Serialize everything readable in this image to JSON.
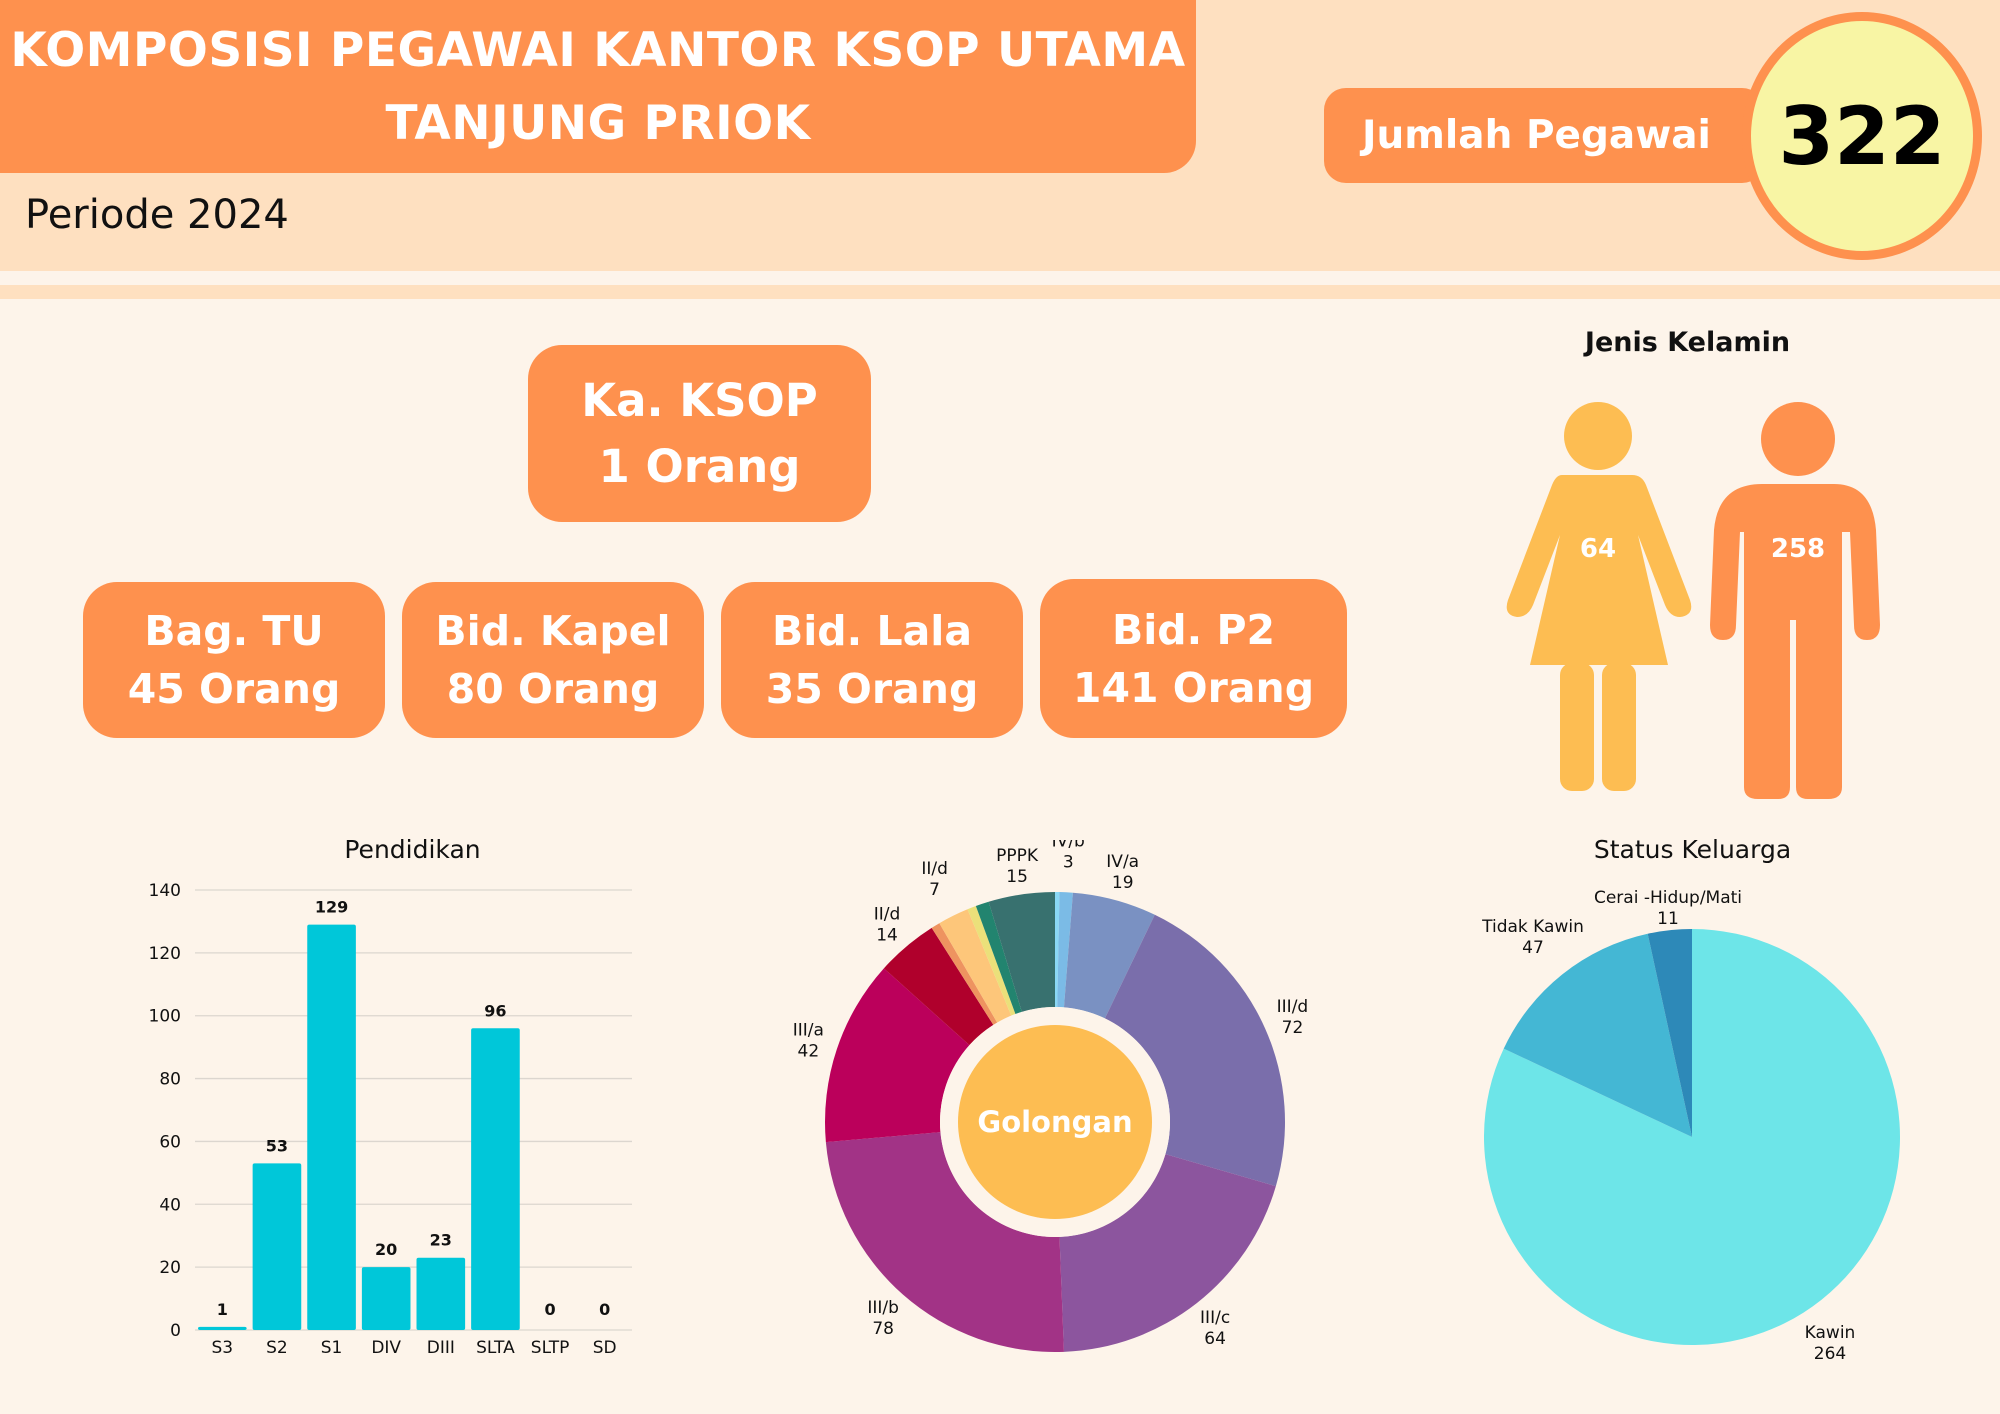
{
  "header": {
    "title_line1": "KOMPOSISI PEGAWAI KANTOR KSOP UTAMA",
    "title_line2": "TANJUNG PRIOK",
    "period": "Periode 2024",
    "total_label": "Jumlah Pegawai",
    "total_value": "322"
  },
  "colors": {
    "orange": "#fe914e",
    "peach": "#fee0c0",
    "cream": "#fdf4ea",
    "yellow_circle": "#f8f5a4",
    "bar": "#00c7d9",
    "female": "#fdbd52",
    "male": "#fe914e"
  },
  "org": {
    "head": {
      "name": "Ka. KSOP",
      "count": "1 Orang"
    },
    "units": [
      {
        "name": "Bag. TU",
        "count": "45 Orang"
      },
      {
        "name": "Bid. Kapel",
        "count": "80 Orang"
      },
      {
        "name": "Bid. Lala",
        "count": "35 Orang"
      },
      {
        "name": "Bid. P2",
        "count": "141 Orang"
      }
    ]
  },
  "gender": {
    "title": "Jenis Kelamin",
    "female": "64",
    "male": "258"
  },
  "chart_data": [
    {
      "type": "bar",
      "title": "Pendidikan",
      "xlabel": "",
      "ylabel": "",
      "categories": [
        "S3",
        "S2",
        "S1",
        "DIV",
        "DIII",
        "SLTA",
        "SLTP",
        "SD"
      ],
      "values": [
        1,
        53,
        129,
        20,
        23,
        96,
        0,
        0
      ],
      "ylim": [
        0,
        140
      ],
      "yticks": [
        0,
        20,
        40,
        60,
        80,
        100,
        120,
        140
      ],
      "grid": true,
      "color": "#00c7d9"
    },
    {
      "type": "pie",
      "variant": "donut",
      "title": "Golongan",
      "slices": [
        {
          "label": "",
          "value": 1,
          "color": "#8ad8f5",
          "show_label": false
        },
        {
          "label": "IV/b",
          "value": 3,
          "color": "#7bbbe6",
          "show_label": true
        },
        {
          "label": "IV/a",
          "value": 19,
          "color": "#7a91c2",
          "show_label": true
        },
        {
          "label": "III/d",
          "value": 72,
          "color": "#7a6eab",
          "show_label": true
        },
        {
          "label": "III/c",
          "value": 64,
          "color": "#8c559e",
          "show_label": true
        },
        {
          "label": "III/b",
          "value": 78,
          "color": "#a23386",
          "show_label": true
        },
        {
          "label": "III/a",
          "value": 42,
          "color": "#bb005b",
          "show_label": true
        },
        {
          "label": "II/d",
          "value": 14,
          "color": "#b0002c",
          "show_label": true
        },
        {
          "label": "",
          "value": 2,
          "color": "#ee9360",
          "show_label": false
        },
        {
          "label": "II/d",
          "value": 7,
          "color": "#fdc67a",
          "show_label": true
        },
        {
          "label": "",
          "value": 2,
          "color": "#ebe07a",
          "show_label": false
        },
        {
          "label": "",
          "value": 3,
          "color": "#22846f",
          "show_label": false
        },
        {
          "label": "PPPK",
          "value": 15,
          "color": "#38716f",
          "show_label": true
        }
      ]
    },
    {
      "type": "pie",
      "title": "Status Keluarga",
      "slices": [
        {
          "label": "Kawin",
          "value": 264,
          "color": "#6de5e8"
        },
        {
          "label": "Tidak Kawin",
          "value": 47,
          "color": "#44b7d4"
        },
        {
          "label": "Cerai -Hidup/Mati",
          "value": 11,
          "color": "#2d89b8"
        }
      ]
    }
  ]
}
